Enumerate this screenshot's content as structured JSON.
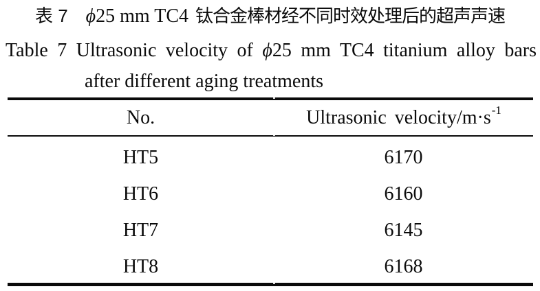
{
  "colors": {
    "background": "#ffffff",
    "ink": "#0b0b0b"
  },
  "caption_zh": {
    "label": "表 7",
    "phi": "ϕ",
    "latin": "25 mm TC4",
    "cjk": "钛合金棒材经不同时效处理后的超声声速"
  },
  "caption_en": {
    "label": "Table 7",
    "mid": "Ultrasonic velocity of",
    "phi": "ϕ",
    "post": "25 mm TC4 titanium alloy bars",
    "line2": "after different aging treatments"
  },
  "table": {
    "header": {
      "no": "No.",
      "velocity_base": "Ultrasonic velocity/m·s",
      "velocity_sup": "-1"
    },
    "rows": [
      {
        "no": "HT5",
        "velocity": "6170"
      },
      {
        "no": "HT6",
        "velocity": "6160"
      },
      {
        "no": "HT7",
        "velocity": "6145"
      },
      {
        "no": "HT8",
        "velocity": "6168"
      }
    ]
  }
}
